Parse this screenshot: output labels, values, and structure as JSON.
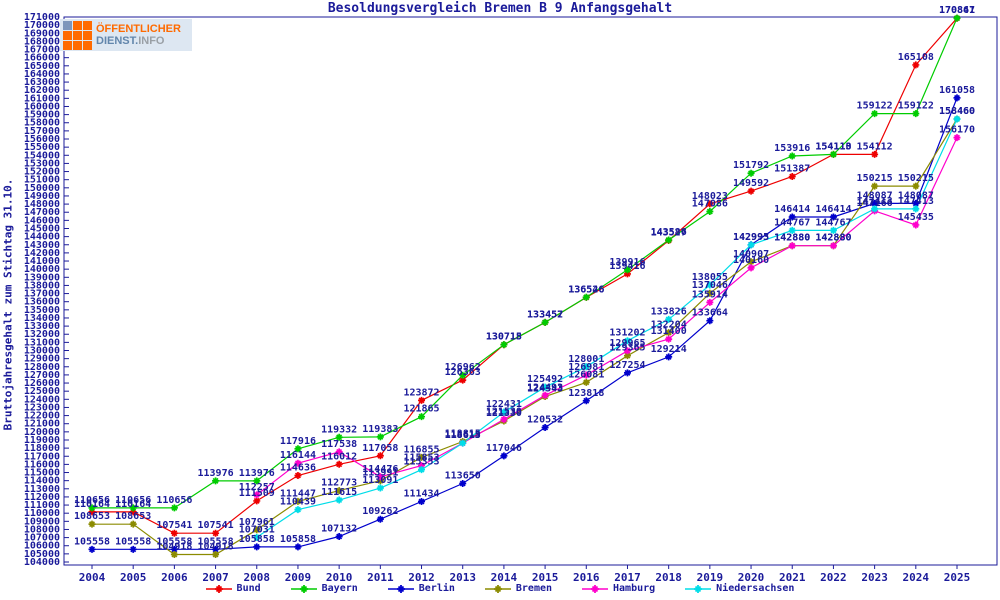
{
  "logo": {
    "line1": "ÖFFENTLICHER",
    "line2_strong": "DIENST.",
    "line2_light": "INFO",
    "orange": "#ff6a00",
    "slate": "#7d96bb",
    "bg": "#dde7f2",
    "blue_text": "#6286ac",
    "gray_text": "#9aa0a6"
  },
  "chart_data": {
    "type": "line",
    "title": "Besoldungsvergleich Bremen B 9 Anfangsgehalt",
    "ylabel": "Bruttojahresgehalt zum Stichtag 31.10.",
    "x": [
      2004,
      2005,
      2006,
      2007,
      2008,
      2009,
      2010,
      2011,
      2012,
      2013,
      2014,
      2015,
      2016,
      2017,
      2018,
      2019,
      2020,
      2021,
      2022,
      2023,
      2024,
      2025
    ],
    "y_axis": {
      "min": 104000,
      "max": 171000,
      "step": 1000
    },
    "grid": false,
    "legend_position": "bottom",
    "axis_color": "#1b1b9a",
    "label_color": "#1b1b9a",
    "series": [
      {
        "name": "Bund",
        "color": "#ee0000",
        "values": [
          110164,
          110164,
          107541,
          107541,
          111509,
          114636,
          116012,
          117058,
          123872,
          126363,
          130715,
          133452,
          136526,
          139416,
          143527,
          148023,
          149592,
          151387,
          154110,
          154112,
          165108,
          170847
        ]
      },
      {
        "name": "Bayern",
        "color": "#00cc00",
        "values": [
          110656,
          110656,
          110656,
          113976,
          113976,
          117916,
          119332,
          119383,
          121865,
          126962,
          130718,
          133457,
          136546,
          139916,
          143586,
          147086,
          151792,
          153916,
          154113,
          159122,
          159122,
          170861
        ]
      },
      {
        "name": "Berlin",
        "color": "#0000cc",
        "values": [
          105558,
          105558,
          105558,
          105558,
          105858,
          105858,
          107132,
          109262,
          111434,
          113650,
          117046,
          120532,
          123818,
          127254,
          129214,
          133664,
          142995,
          146414,
          146414,
          148087,
          148087,
          161058
        ]
      },
      {
        "name": "Bremen",
        "color": "#8b8b00",
        "values": [
          108653,
          108653,
          104918,
          104918,
          107961,
          111447,
          112773,
          113991,
          116855,
          118815,
          121330,
          124343,
          126081,
          129365,
          132204,
          137046,
          140907,
          142880,
          142880,
          150215,
          150215,
          158460
        ]
      },
      {
        "name": "Hamburg",
        "color": "#ff00cc",
        "values": [
          null,
          null,
          null,
          null,
          112257,
          116144,
          117538,
          114476,
          115853,
          118615,
          121530,
          124493,
          126981,
          129965,
          131400,
          135914,
          140160,
          142880,
          142880,
          147166,
          145435,
          156170
        ]
      },
      {
        "name": "Niedersachsen",
        "color": "#00dde8",
        "values": [
          null,
          null,
          null,
          null,
          107031,
          110439,
          111615,
          113091,
          115353,
          118613,
          122431,
          125492,
          128001,
          131202,
          133826,
          138055,
          142993,
          144767,
          144767,
          147413,
          147413,
          158460
        ]
      }
    ]
  }
}
